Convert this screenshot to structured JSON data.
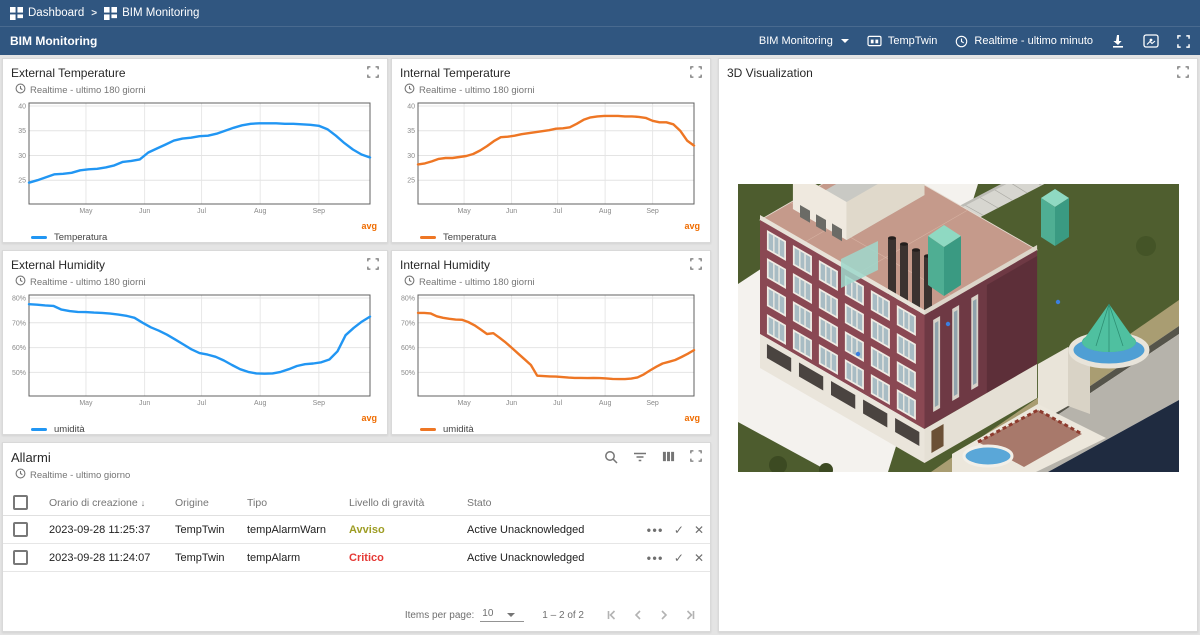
{
  "colors": {
    "topbar": "#305680",
    "page_bg": "#e4e4e4",
    "accent_blue": "#2196f3",
    "accent_orange": "#ee7624",
    "avg_label": "#ef6c00",
    "severity_warning": "#9e9d24",
    "severity_critical": "#e53935"
  },
  "breadcrumb": {
    "separator": ">",
    "items": [
      {
        "label": "Dashboard",
        "icon": "dashboards-icon"
      },
      {
        "label": "BIM Monitoring",
        "icon": "dashboards-icon"
      }
    ]
  },
  "toolbar": {
    "title": "BIM Monitoring",
    "state_select_label": "BIM Monitoring",
    "entity_label": "TempTwin",
    "timewindow_label": "Realtime - ultimo minuto",
    "icons": [
      "download-icon",
      "screenshot-icon",
      "fullscreen-icon"
    ]
  },
  "chart_data": [
    {
      "type": "line",
      "title": "External Temperature",
      "timewindow": "Realtime - ultimo 180 giorni",
      "series": "Temperatura",
      "agg": "avg",
      "color": "#2196f3",
      "y_suffix": "",
      "ylim": [
        20.2,
        40.6
      ],
      "yticks": [
        25,
        30,
        35,
        40
      ],
      "xticks": [
        "May",
        "Jun",
        "Jul",
        "Aug",
        "Sep"
      ],
      "xtick_pos": [
        0.167,
        0.339,
        0.506,
        0.678,
        0.85
      ],
      "x_span": "180 days ending 2023-09-28",
      "values": [
        24.5,
        25.0,
        25.6,
        26.2,
        26.3,
        26.5,
        27.0,
        27.2,
        27.3,
        27.6,
        28.0,
        28.7,
        28.9,
        29.2,
        30.6,
        31.4,
        32.2,
        33.0,
        33.4,
        33.6,
        33.9,
        34.0,
        34.4,
        35.0,
        35.6,
        36.1,
        36.4,
        36.5,
        36.5,
        36.5,
        36.4,
        36.4,
        36.3,
        36.2,
        36.0,
        35.3,
        34.0,
        32.5,
        31.2,
        30.2,
        29.6
      ]
    },
    {
      "type": "line",
      "title": "Internal Temperature",
      "timewindow": "Realtime - ultimo 180 giorni",
      "series": "Temperatura",
      "agg": "avg",
      "color": "#ee7624",
      "y_suffix": "",
      "ylim": [
        20.2,
        40.6
      ],
      "yticks": [
        25,
        30,
        35,
        40
      ],
      "xticks": [
        "May",
        "Jun",
        "Jul",
        "Aug",
        "Sep"
      ],
      "xtick_pos": [
        0.167,
        0.339,
        0.506,
        0.678,
        0.85
      ],
      "x_span": "180 days ending 2023-09-28",
      "values": [
        28.2,
        28.4,
        28.8,
        29.3,
        29.5,
        29.5,
        29.7,
        29.9,
        30.3,
        31.0,
        31.9,
        32.9,
        33.7,
        33.8,
        34.0,
        34.3,
        34.5,
        34.7,
        34.9,
        35.1,
        35.4,
        35.5,
        35.7,
        36.4,
        37.2,
        37.7,
        37.9,
        38.0,
        38.0,
        38.0,
        37.9,
        37.9,
        37.8,
        37.6,
        37.0,
        36.7,
        36.7,
        36.3,
        35.0,
        33.0,
        32.0
      ]
    },
    {
      "type": "line",
      "title": "External Humidity",
      "timewindow": "Realtime - ultimo 180 giorni",
      "series": "umidità",
      "agg": "avg",
      "color": "#2196f3",
      "y_suffix": "%",
      "ylim": [
        40.5,
        81.2
      ],
      "yticks": [
        50,
        60,
        70,
        80
      ],
      "xticks": [
        "May",
        "Jun",
        "Jul",
        "Aug",
        "Sep"
      ],
      "xtick_pos": [
        0.167,
        0.339,
        0.506,
        0.678,
        0.85
      ],
      "x_span": "180 days ending 2023-09-28",
      "values": [
        77.5,
        77.3,
        77.0,
        76.8,
        75.3,
        74.7,
        74.4,
        74.3,
        74.1,
        74.0,
        73.7,
        73.3,
        72.8,
        72.0,
        70.0,
        68.2,
        66.8,
        65.2,
        63.3,
        61.3,
        59.3,
        57.8,
        57.2,
        56.3,
        54.8,
        53.0,
        51.3,
        50.2,
        49.6,
        49.5,
        49.6,
        50.2,
        51.3,
        52.6,
        53.3,
        53.6,
        54.1,
        55.2,
        58.5,
        65.0,
        68.0,
        70.5,
        72.5
      ]
    },
    {
      "type": "line",
      "title": "Internal Humidity",
      "timewindow": "Realtime - ultimo 180 giorni",
      "series": "umidità",
      "agg": "avg",
      "color": "#ee7624",
      "y_suffix": "%",
      "ylim": [
        40.5,
        81.2
      ],
      "yticks": [
        50,
        60,
        70,
        80
      ],
      "xticks": [
        "May",
        "Jun",
        "Jul",
        "Aug",
        "Sep"
      ],
      "xtick_pos": [
        0.167,
        0.339,
        0.506,
        0.678,
        0.85
      ],
      "x_span": "180 days ending 2023-09-28",
      "values": [
        74.0,
        74.0,
        73.8,
        72.6,
        72.0,
        71.6,
        71.3,
        71.2,
        70.3,
        69.0,
        67.3,
        65.5,
        65.8,
        64.0,
        62.0,
        59.8,
        57.5,
        55.3,
        53.0,
        48.7,
        48.5,
        48.4,
        48.3,
        48.1,
        47.9,
        47.8,
        47.8,
        47.7,
        47.8,
        47.7,
        47.6,
        47.4,
        47.3,
        47.3,
        47.5,
        48.0,
        49.2,
        50.8,
        52.3,
        53.6,
        54.3,
        55.0,
        56.2,
        57.5,
        59.0
      ]
    }
  ],
  "alarms": {
    "title": "Allarmi",
    "timewindow": "Realtime - ultimo giorno",
    "columns": {
      "created": "Orario di creazione",
      "origin": "Origine",
      "type": "Tipo",
      "severity": "Livello di gravità",
      "status": "Stato"
    },
    "rows": [
      {
        "created": "2023-09-28 11:25:37",
        "origin": "TempTwin",
        "type": "tempAlarmWarn",
        "severity": "Avviso",
        "severity_color": "#9e9d24",
        "status": "Active Unacknowledged"
      },
      {
        "created": "2023-09-28 11:24:07",
        "origin": "TempTwin",
        "type": "tempAlarm",
        "severity": "Critico",
        "severity_color": "#e53935",
        "status": "Active Unacknowledged"
      }
    ],
    "pagination": {
      "items_per_page_label": "Items per page:",
      "items_per_page": "10",
      "range": "1 – 2 of 2"
    }
  },
  "viz": {
    "title": "3D Visualization"
  }
}
